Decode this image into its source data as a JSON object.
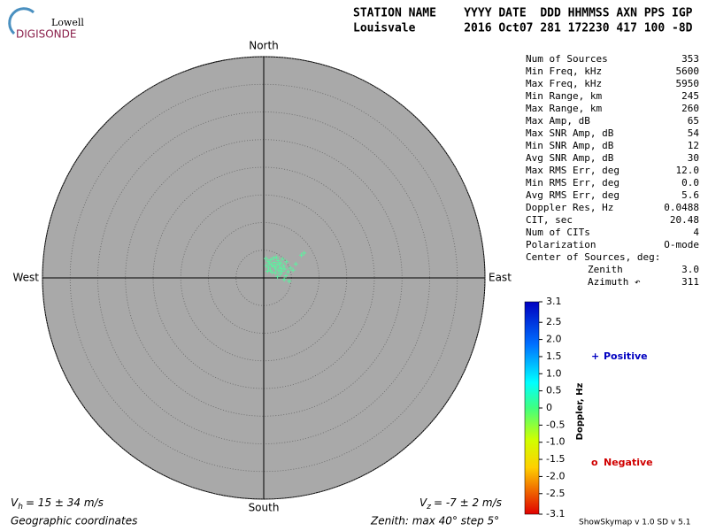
{
  "logo": {
    "top": "Lowell",
    "bottom": "DIGISONDE"
  },
  "header": {
    "line1": "STATION NAME    YYYY DATE  DDD HHMMSS AXN PPS IGP",
    "line2": "Louisvale       2016 Oct07 281 172230 417 100 -8D"
  },
  "chart_data": {
    "type": "scatter",
    "directions": {
      "north": "North",
      "south": "South",
      "west": "West",
      "east": "East"
    },
    "rlim": [
      0,
      40
    ],
    "rticks": [
      5,
      10,
      15,
      20,
      25,
      30,
      35,
      40
    ],
    "color": "#5ef0a0",
    "x": [
      0.4,
      0.8,
      1.0,
      1.3,
      1.6,
      1.9,
      2.2,
      2.4,
      2.6,
      2.9,
      3.1,
      3.3,
      3.6,
      3.8,
      4.1,
      0.5,
      0.9,
      1.2,
      1.5,
      1.8,
      2.1,
      2.7,
      3.0,
      3.4,
      4.4,
      4.8,
      5.3,
      5.8,
      6.8,
      7.3,
      4.0,
      3.7,
      2.5,
      4.6,
      1.4,
      2.0,
      2.8,
      0.7,
      3.2,
      2.3
    ],
    "y": [
      3.5,
      3.0,
      2.6,
      3.3,
      2.1,
      2.8,
      1.6,
      2.4,
      3.1,
      1.9,
      2.7,
      1.2,
      2.2,
      1.6,
      2.9,
      2.2,
      1.8,
      1.4,
      1.0,
      3.6,
      0.9,
      1.3,
      0.7,
      3.4,
      1.1,
      1.8,
      1.4,
      2.5,
      4.1,
      4.5,
      0.4,
      -0.3,
      0.2,
      -0.6,
      2.4,
      2.0,
      2.5,
      1.2,
      1.7,
      3.7
    ]
  },
  "stats": {
    "rows": [
      [
        "Num of Sources",
        "353"
      ],
      [
        "Min Freq, kHz",
        "5600"
      ],
      [
        "Max Freq, kHz",
        "5950"
      ],
      [
        "Min Range, km",
        "245"
      ],
      [
        "Max Range, km",
        "260"
      ],
      [
        "Max Amp, dB",
        "65"
      ],
      [
        "Max SNR Amp, dB",
        "54"
      ],
      [
        "Min SNR Amp, dB",
        "12"
      ],
      [
        "Avg SNR Amp, dB",
        "30"
      ],
      [
        "Max RMS Err, deg",
        "12.0"
      ],
      [
        "Min RMS Err, deg",
        "0.0"
      ],
      [
        "Avg RMS Err, deg",
        "5.6"
      ],
      [
        "Doppler Res, Hz",
        "0.0488"
      ],
      [
        "CIT, sec",
        "20.48"
      ],
      [
        "Num of CITs",
        "4"
      ],
      [
        "Polarization",
        "O-mode"
      ]
    ],
    "center_label": "Center of Sources, deg:",
    "center_rows": [
      [
        "Zenith",
        "3.0"
      ],
      [
        "Azimuth ↶",
        "311"
      ]
    ]
  },
  "colorbar": {
    "title": "Doppler, Hz",
    "lim": [
      -3.1,
      3.1
    ],
    "ticks": [
      3.1,
      2.5,
      {
        "value": 2,
        "label": "2.0"
      },
      1.5,
      {
        "value": 1,
        "label": "1.0"
      },
      0.5,
      0,
      -0.5,
      {
        "value": -1,
        "label": "-1.0"
      },
      -1.5,
      {
        "value": -2,
        "label": "-2.0"
      },
      -2.5,
      -3.1
    ]
  },
  "legend": {
    "positive_symbol": "+",
    "positive": "Positive",
    "negative_symbol": "o",
    "negative": "Negative"
  },
  "footer": {
    "vh_symbol": "V",
    "vh_sub": "h",
    "vh_text": "= 15 ± 34 m/s",
    "vz_symbol": "V",
    "vz_sub": "z",
    "vz_text": "= -7 ± 2 m/s",
    "coords": "Geographic coordinates",
    "zenith": "Zenith: max 40°  step 5°",
    "version": "ShowSkymap v 1.0  SD v 5.1"
  }
}
